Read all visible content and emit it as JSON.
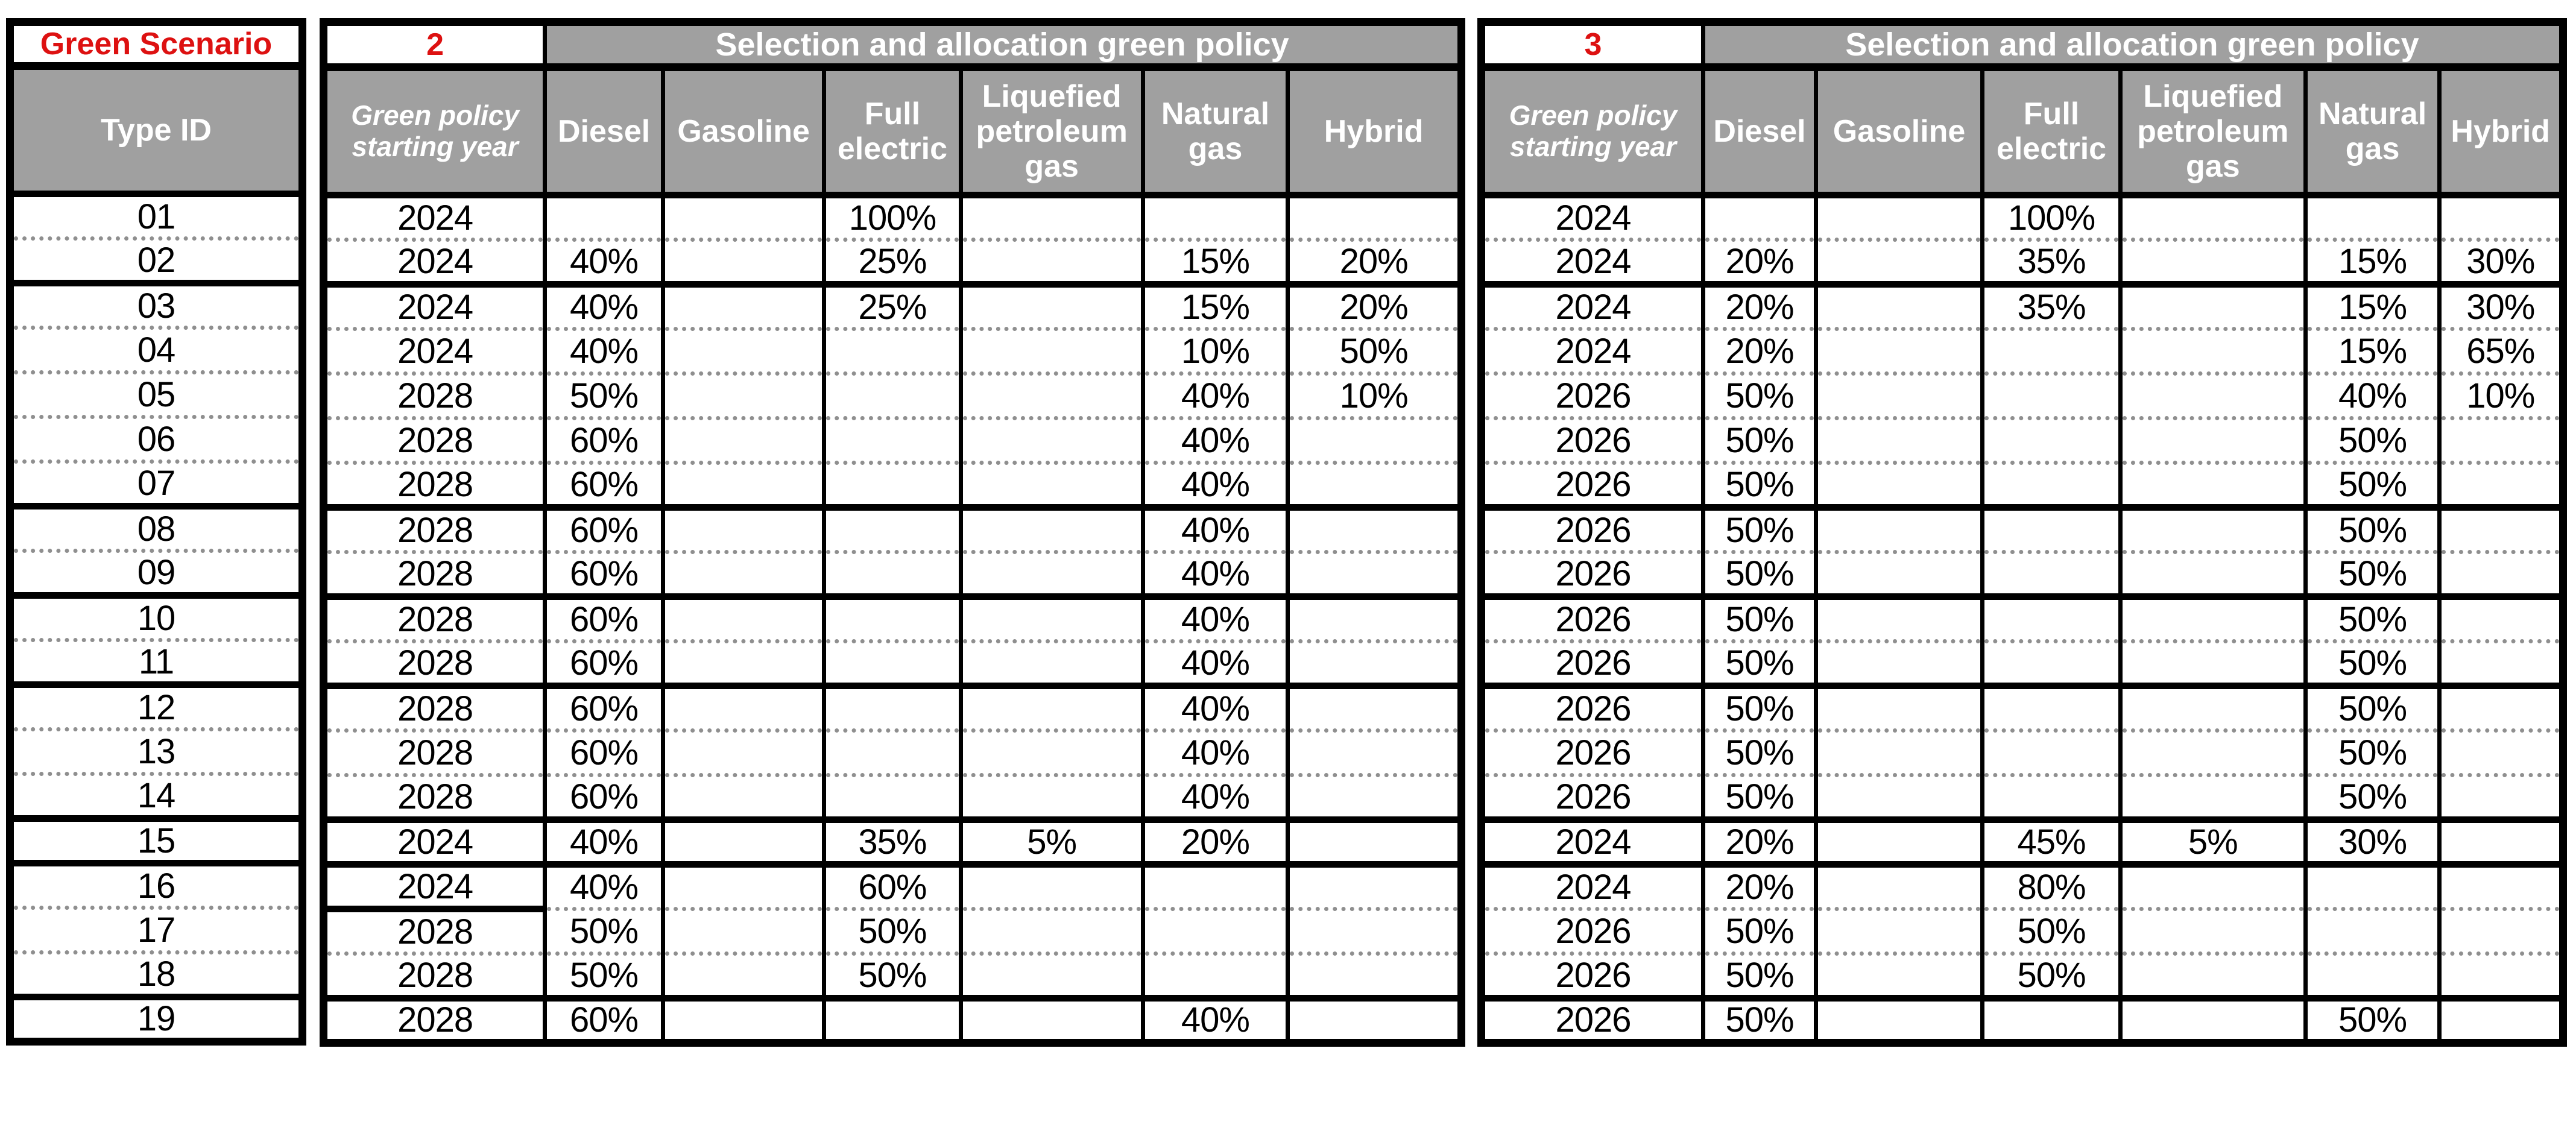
{
  "colors": {
    "header_bg": "#a0a0a0",
    "accent_red": "#dd1111",
    "grid_black": "#000000",
    "dotted_gray": "#8f8f8f",
    "cell_bg": "#ffffff",
    "header_text": "#ffffff",
    "data_text": "#000000"
  },
  "left_block": {
    "title": "Green Scenario",
    "header": "Type ID"
  },
  "scenarios": [
    {
      "number": "2",
      "banner": "Selection and allocation green policy",
      "col_headers": [
        "Green policy starting year",
        "Diesel",
        "Gasoline",
        "Full electric",
        "Liquefied petroleum gas",
        "Natural gas",
        "Hybrid"
      ]
    },
    {
      "number": "3",
      "banner": "Selection and allocation green policy",
      "col_headers": [
        "Green policy starting year",
        "Diesel",
        "Gasoline",
        "Full electric",
        "Liquefied petroleum gas",
        "Natural gas",
        "Hybrid"
      ]
    }
  ],
  "column_keys": [
    "year",
    "diesel",
    "gasoline",
    "full-electric",
    "lpg",
    "natural-gas",
    "hybrid"
  ],
  "rows": [
    {
      "id": "01",
      "sep_after": "dotted",
      "s2": [
        "2024",
        "",
        "",
        "100%",
        "",
        "",
        ""
      ],
      "s3": [
        "2024",
        "",
        "",
        "100%",
        "",
        "",
        ""
      ]
    },
    {
      "id": "02",
      "sep_after": "thick",
      "s2": [
        "2024",
        "40%",
        "",
        "25%",
        "",
        "15%",
        "20%"
      ],
      "s3": [
        "2024",
        "20%",
        "",
        "35%",
        "",
        "15%",
        "30%"
      ]
    },
    {
      "id": "03",
      "sep_after": "dotted",
      "s2": [
        "2024",
        "40%",
        "",
        "25%",
        "",
        "15%",
        "20%"
      ],
      "s3": [
        "2024",
        "20%",
        "",
        "35%",
        "",
        "15%",
        "30%"
      ]
    },
    {
      "id": "04",
      "sep_after": "dotted",
      "s2": [
        "2024",
        "40%",
        "",
        "",
        "",
        "10%",
        "50%"
      ],
      "s3": [
        "2024",
        "20%",
        "",
        "",
        "",
        "15%",
        "65%"
      ]
    },
    {
      "id": "05",
      "sep_after": "dotted",
      "s2": [
        "2028",
        "50%",
        "",
        "",
        "",
        "40%",
        "10%"
      ],
      "s3": [
        "2026",
        "50%",
        "",
        "",
        "",
        "40%",
        "10%"
      ]
    },
    {
      "id": "06",
      "sep_after": "dotted",
      "s2": [
        "2028",
        "60%",
        "",
        "",
        "",
        "40%",
        ""
      ],
      "s3": [
        "2026",
        "50%",
        "",
        "",
        "",
        "50%",
        ""
      ]
    },
    {
      "id": "07",
      "sep_after": "thick",
      "s2": [
        "2028",
        "60%",
        "",
        "",
        "",
        "40%",
        ""
      ],
      "s3": [
        "2026",
        "50%",
        "",
        "",
        "",
        "50%",
        ""
      ]
    },
    {
      "id": "08",
      "sep_after": "dotted",
      "s2": [
        "2028",
        "60%",
        "",
        "",
        "",
        "40%",
        ""
      ],
      "s3": [
        "2026",
        "50%",
        "",
        "",
        "",
        "50%",
        ""
      ]
    },
    {
      "id": "09",
      "sep_after": "thick",
      "s2": [
        "2028",
        "60%",
        "",
        "",
        "",
        "40%",
        ""
      ],
      "s3": [
        "2026",
        "50%",
        "",
        "",
        "",
        "50%",
        ""
      ]
    },
    {
      "id": "10",
      "sep_after": "dotted",
      "s2": [
        "2028",
        "60%",
        "",
        "",
        "",
        "40%",
        ""
      ],
      "s3": [
        "2026",
        "50%",
        "",
        "",
        "",
        "50%",
        ""
      ]
    },
    {
      "id": "11",
      "sep_after": "thick",
      "s2": [
        "2028",
        "60%",
        "",
        "",
        "",
        "40%",
        ""
      ],
      "s3": [
        "2026",
        "50%",
        "",
        "",
        "",
        "50%",
        ""
      ]
    },
    {
      "id": "12",
      "sep_after": "dotted",
      "s2": [
        "2028",
        "60%",
        "",
        "",
        "",
        "40%",
        ""
      ],
      "s3": [
        "2026",
        "50%",
        "",
        "",
        "",
        "50%",
        ""
      ]
    },
    {
      "id": "13",
      "sep_after": "dotted",
      "s2": [
        "2028",
        "60%",
        "",
        "",
        "",
        "40%",
        ""
      ],
      "s3": [
        "2026",
        "50%",
        "",
        "",
        "",
        "50%",
        ""
      ]
    },
    {
      "id": "14",
      "sep_after": "thick",
      "s2": [
        "2028",
        "60%",
        "",
        "",
        "",
        "40%",
        ""
      ],
      "s3": [
        "2026",
        "50%",
        "",
        "",
        "",
        "50%",
        ""
      ]
    },
    {
      "id": "15",
      "sep_after": "thick",
      "s2": [
        "2024",
        "40%",
        "",
        "35%",
        "5%",
        "20%",
        ""
      ],
      "s3": [
        "2024",
        "20%",
        "",
        "45%",
        "5%",
        "30%",
        ""
      ]
    },
    {
      "id": "16",
      "sep_after": "dotted",
      "s2": [
        "2024",
        "40%",
        "",
        "60%",
        "",
        "",
        ""
      ],
      "s3": [
        "2024",
        "20%",
        "",
        "80%",
        "",
        "",
        ""
      ]
    },
    {
      "id": "17",
      "sep_after": "dotted",
      "s2": [
        "2028",
        "50%",
        "",
        "50%",
        "",
        "",
        ""
      ],
      "s3": [
        "2026",
        "50%",
        "",
        "50%",
        "",
        "",
        ""
      ]
    },
    {
      "id": "18",
      "sep_after": "thick",
      "s2": [
        "2028",
        "50%",
        "",
        "50%",
        "",
        "",
        ""
      ],
      "s3": [
        "2026",
        "50%",
        "",
        "50%",
        "",
        "",
        ""
      ]
    },
    {
      "id": "19",
      "sep_after": "none",
      "s2": [
        "2028",
        "60%",
        "",
        "",
        "",
        "40%",
        ""
      ],
      "s3": [
        "2026",
        "50%",
        "",
        "",
        "",
        "50%",
        ""
      ]
    }
  ]
}
